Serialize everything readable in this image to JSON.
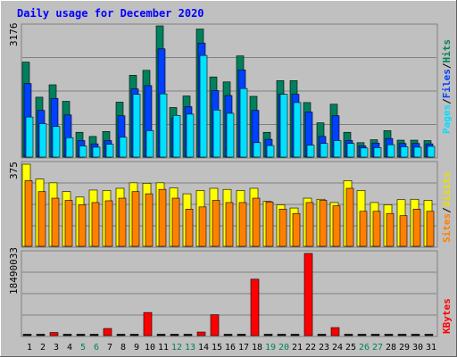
{
  "title": "Daily usage for December 2020",
  "colors": {
    "background": "#C0C0C0",
    "title": "#0000FF",
    "hits": "#00805C",
    "files": "#0040FF",
    "pages": "#00E0FF",
    "visits": "#FFFF00",
    "sites": "#FF8000",
    "kbytes": "#FF0000",
    "weekend_label": "#00805C",
    "weekday_label": "#000000"
  },
  "chart_data": [
    {
      "type": "bar",
      "name": "hits-files-pages",
      "categories": [
        "1",
        "2",
        "3",
        "4",
        "5",
        "6",
        "7",
        "8",
        "9",
        "10",
        "11",
        "12",
        "13",
        "14",
        "15",
        "16",
        "17",
        "18",
        "19",
        "20",
        "21",
        "22",
        "23",
        "24",
        "25",
        "26",
        "27",
        "28",
        "29",
        "30",
        "31"
      ],
      "weekend_days": [
        "5",
        "6",
        "12",
        "13",
        "19",
        "20",
        "26",
        "27"
      ],
      "max_label": "3176",
      "ylim": [
        0,
        3176
      ],
      "legend_labels": {
        "pages": "Pages",
        "files": "Files",
        "hits": "Hits",
        "sep": "/"
      },
      "series": [
        {
          "name": "Hits",
          "values": [
            2300,
            1450,
            1750,
            1350,
            600,
            500,
            620,
            1330,
            1980,
            2100,
            3176,
            1200,
            1480,
            3100,
            1940,
            1820,
            2450,
            1470,
            600,
            1850,
            1850,
            1320,
            830,
            1280,
            600,
            350,
            420,
            640,
            410,
            410,
            400
          ]
        },
        {
          "name": "Files",
          "values": [
            1780,
            1130,
            1420,
            1020,
            400,
            320,
            400,
            1000,
            1650,
            1730,
            2620,
            940,
            1220,
            2760,
            1610,
            1490,
            2110,
            1130,
            430,
            1520,
            1520,
            1090,
            500,
            1000,
            400,
            270,
            340,
            450,
            330,
            330,
            320
          ]
        },
        {
          "name": "Pages",
          "values": [
            970,
            810,
            740,
            470,
            270,
            240,
            310,
            480,
            1520,
            640,
            1530,
            1010,
            1040,
            2460,
            1140,
            1060,
            1660,
            350,
            280,
            1520,
            1320,
            290,
            330,
            400,
            330,
            220,
            230,
            300,
            250,
            240,
            260
          ]
        }
      ]
    },
    {
      "type": "bar",
      "name": "visits-sites",
      "categories": [
        "1",
        "2",
        "3",
        "4",
        "5",
        "6",
        "7",
        "8",
        "9",
        "10",
        "11",
        "12",
        "13",
        "14",
        "15",
        "16",
        "17",
        "18",
        "19",
        "20",
        "21",
        "22",
        "23",
        "24",
        "25",
        "26",
        "27",
        "28",
        "29",
        "30",
        "31"
      ],
      "max_label": "375",
      "ylim": [
        0,
        375
      ],
      "legend_labels": {
        "sites": "Sites",
        "visits": "Visits",
        "sep": "/"
      },
      "series": [
        {
          "name": "Visits",
          "values": [
            375,
            307,
            290,
            250,
            225,
            257,
            255,
            265,
            290,
            288,
            290,
            267,
            240,
            255,
            265,
            260,
            255,
            265,
            205,
            190,
            175,
            220,
            215,
            200,
            300,
            255,
            200,
            190,
            213,
            215,
            210
          ]
        },
        {
          "name": "Sites",
          "values": [
            300,
            250,
            220,
            210,
            190,
            200,
            208,
            220,
            250,
            240,
            260,
            220,
            170,
            180,
            210,
            200,
            200,
            220,
            203,
            170,
            150,
            200,
            210,
            185,
            265,
            160,
            160,
            150,
            140,
            170,
            160
          ]
        }
      ]
    },
    {
      "type": "bar",
      "name": "kbytes",
      "categories": [
        "1",
        "2",
        "3",
        "4",
        "5",
        "6",
        "7",
        "8",
        "9",
        "10",
        "11",
        "12",
        "13",
        "14",
        "15",
        "16",
        "17",
        "18",
        "19",
        "20",
        "21",
        "22",
        "23",
        "24",
        "25",
        "26",
        "27",
        "28",
        "29",
        "30",
        "31"
      ],
      "max_label": "18490033",
      "ylim": [
        0,
        18490033
      ],
      "legend_labels": {
        "kbytes": "KBytes"
      },
      "series": [
        {
          "name": "KBytes",
          "values": [
            0,
            0,
            700000,
            0,
            0,
            0,
            1600000,
            0,
            0,
            5200000,
            0,
            0,
            0,
            800000,
            4700000,
            0,
            0,
            12700000,
            0,
            0,
            0,
            18490033,
            0,
            1800000,
            0,
            0,
            0,
            0,
            0,
            0,
            0
          ]
        }
      ]
    }
  ]
}
